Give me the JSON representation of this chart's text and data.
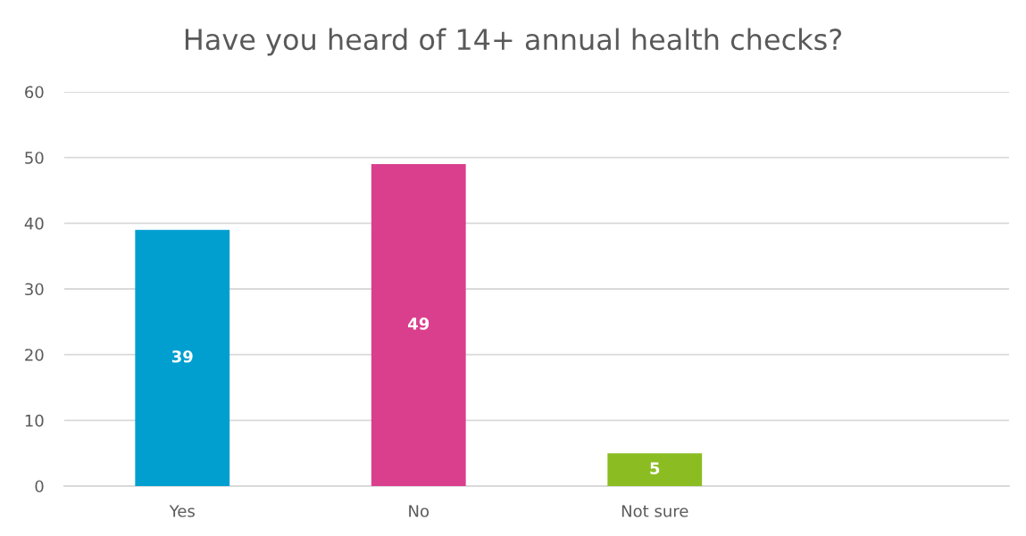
{
  "chart_data": {
    "type": "bar",
    "title": "Have you heard of 14+ annual health checks?",
    "categories": [
      "Yes",
      "No",
      "Not sure",
      null
    ],
    "values": [
      39,
      49,
      5,
      null
    ],
    "colors": [
      "#009fd0",
      "#da3f8e",
      "#8bbd23",
      null
    ],
    "ylim": [
      0,
      60
    ],
    "yticks": [
      0,
      10,
      20,
      30,
      40,
      50,
      60
    ],
    "grid": "y",
    "data_labels": true
  }
}
